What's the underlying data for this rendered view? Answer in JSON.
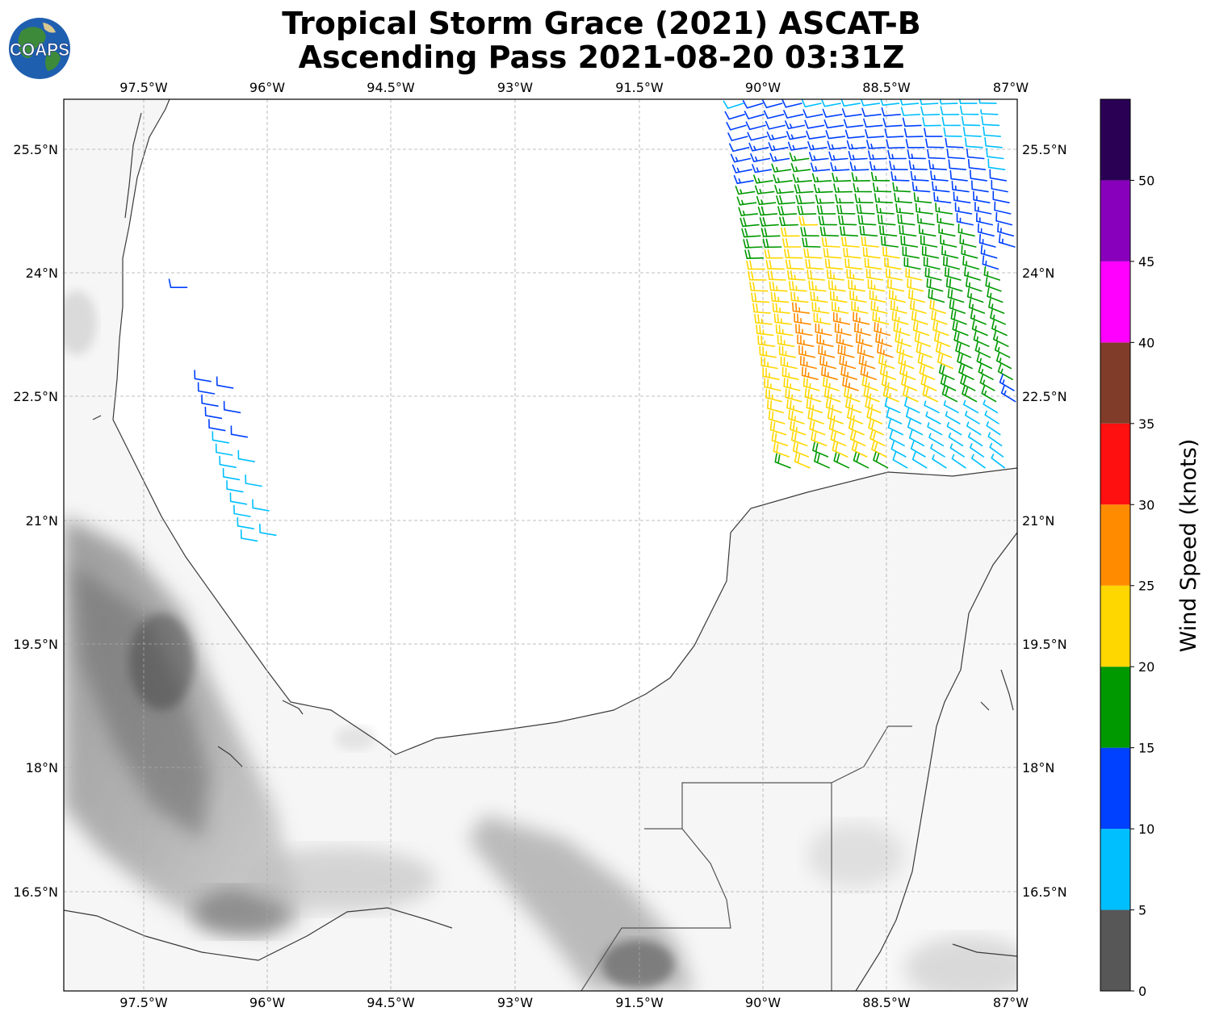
{
  "title": {
    "line1": "Tropical Storm Grace (2021) ASCAT-B",
    "line2": "Ascending Pass 2021-08-20 03:31Z"
  },
  "logo": {
    "text": "COAPS",
    "icon": "globe-logo-icon"
  },
  "map": {
    "projection": "plate-carree",
    "lon_range": [
      -99.0,
      -87.0
    ],
    "lat_range": [
      15.2,
      26.1
    ],
    "gridlines": true,
    "lon_ticks": [
      {
        "value": -97.5,
        "label": "97.5°W"
      },
      {
        "value": -96.0,
        "label": "96°W"
      },
      {
        "value": -94.5,
        "label": "94.5°W"
      },
      {
        "value": -93.0,
        "label": "93°W"
      },
      {
        "value": -91.5,
        "label": "91.5°W"
      },
      {
        "value": -90.0,
        "label": "90°W"
      },
      {
        "value": -88.5,
        "label": "88.5°W"
      },
      {
        "value": -87.0,
        "label": "87°W"
      }
    ],
    "lat_ticks": [
      {
        "value": 25.5,
        "label": "25.5°N"
      },
      {
        "value": 24.0,
        "label": "24°N"
      },
      {
        "value": 22.5,
        "label": "22.5°N"
      },
      {
        "value": 21.0,
        "label": "21°N"
      },
      {
        "value": 19.5,
        "label": "19.5°N"
      },
      {
        "value": 18.0,
        "label": "18°N"
      },
      {
        "value": 16.5,
        "label": "16.5°N"
      }
    ],
    "background": "grayscale terrain (land) with white ocean"
  },
  "colorbar": {
    "label": "Wind Speed (knots)",
    "ticks": [
      "0",
      "5",
      "10",
      "15",
      "20",
      "25",
      "30",
      "35",
      "40",
      "45",
      "50"
    ],
    "bins": [
      {
        "min": 0,
        "max": 5,
        "color": "#575757"
      },
      {
        "min": 5,
        "max": 10,
        "color": "#00bfff"
      },
      {
        "min": 10,
        "max": 15,
        "color": "#0040ff"
      },
      {
        "min": 15,
        "max": 20,
        "color": "#009900"
      },
      {
        "min": 20,
        "max": 25,
        "color": "#ffd700"
      },
      {
        "min": 25,
        "max": 30,
        "color": "#ff8c00"
      },
      {
        "min": 30,
        "max": 35,
        "color": "#ff1010"
      },
      {
        "min": 35,
        "max": 40,
        "color": "#803c28"
      },
      {
        "min": 40,
        "max": 45,
        "color": "#ff00ff"
      },
      {
        "min": 45,
        "max": 50,
        "color": "#8800bb"
      },
      {
        "min": 50,
        "max": 55,
        "color": "#2a0055"
      }
    ]
  },
  "wind_barbs": {
    "swaths": [
      {
        "name": "west-swath",
        "lon_range": [
          -97.4,
          -96.5
        ],
        "lat_range": [
          20.6,
          23.8
        ],
        "speed_range_kt": [
          5,
          15
        ]
      },
      {
        "name": "east-swath",
        "lon_range": [
          -90.4,
          -87.0
        ],
        "lat_range": [
          21.4,
          26.1
        ],
        "speed_range_kt": [
          0,
          30
        ]
      }
    ]
  }
}
